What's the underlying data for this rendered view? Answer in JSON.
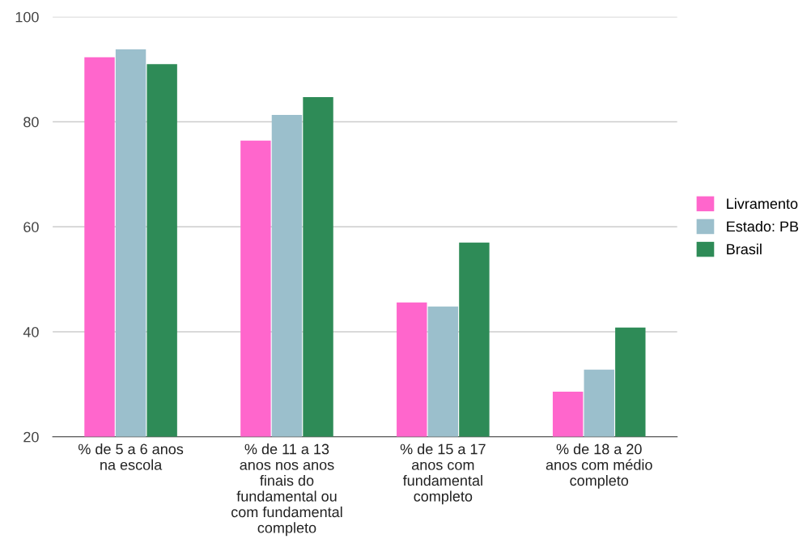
{
  "chart_data": {
    "type": "bar",
    "categories": [
      "% de 5 a 6 anos\nna escola",
      "% de 11 a 13\nanos nos anos\nfinais do\nfundamental ou\ncom fundamental\ncompleto",
      "% de 15 a 17\nanos com\nfundamental\ncompleto",
      "% de 18 a 20\nanos com médio\ncompleto"
    ],
    "series": [
      {
        "name": "Livramento",
        "color": "#ff66cc",
        "values": [
          92.3,
          76.4,
          45.6,
          28.6
        ]
      },
      {
        "name": "Estado: PB",
        "color": "#9bbfcc",
        "values": [
          93.8,
          81.3,
          44.8,
          32.8
        ]
      },
      {
        "name": "Brasil",
        "color": "#2e8b57",
        "values": [
          91.0,
          84.7,
          57.0,
          40.8
        ]
      }
    ],
    "ylim": [
      20,
      100
    ],
    "yticks": [
      20,
      40,
      60,
      80,
      100
    ],
    "grid": "y",
    "legend": "right"
  }
}
